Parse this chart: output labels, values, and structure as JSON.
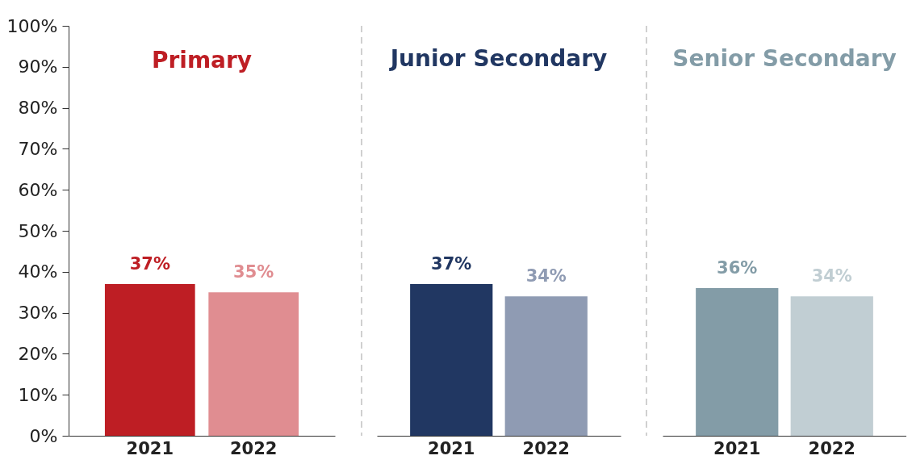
{
  "chart_data": [
    {
      "type": "bar",
      "title": "Primary",
      "categories": [
        "2021",
        "2022"
      ],
      "values": [
        37,
        35
      ],
      "colors": [
        "#be1e24",
        "#e08d91"
      ],
      "value_labels": [
        "37%",
        "35%"
      ],
      "ylim": [
        0,
        100
      ],
      "yticks": [
        {
          "value": 0,
          "label": "0%"
        },
        {
          "value": 10,
          "label": "10%"
        },
        {
          "value": 20,
          "label": "20%"
        },
        {
          "value": 30,
          "label": "30%"
        },
        {
          "value": 40,
          "label": "40%"
        },
        {
          "value": 50,
          "label": "50%"
        },
        {
          "value": 60,
          "label": "60%"
        },
        {
          "value": 70,
          "label": "70%"
        },
        {
          "value": 80,
          "label": "80%"
        },
        {
          "value": 90,
          "label": "90%"
        },
        {
          "value": 100,
          "label": "100%"
        }
      ]
    },
    {
      "type": "bar",
      "title": "Junior Secondary",
      "categories": [
        "2021",
        "2022"
      ],
      "values": [
        37,
        34
      ],
      "colors": [
        "#213762",
        "#8f9bb3"
      ],
      "value_labels": [
        "37%",
        "34%"
      ],
      "ylim": [
        0,
        100
      ],
      "tick_labels": "x"
    },
    {
      "type": "bar",
      "title": "Senior Secondary",
      "categories": [
        "2021",
        "2022"
      ],
      "values": [
        36,
        34
      ],
      "colors": [
        "#839ca7",
        "#c1ced3"
      ],
      "value_labels": [
        "36%",
        "34%"
      ],
      "ylim": [
        0,
        100
      ],
      "tick_labels": "x"
    }
  ]
}
